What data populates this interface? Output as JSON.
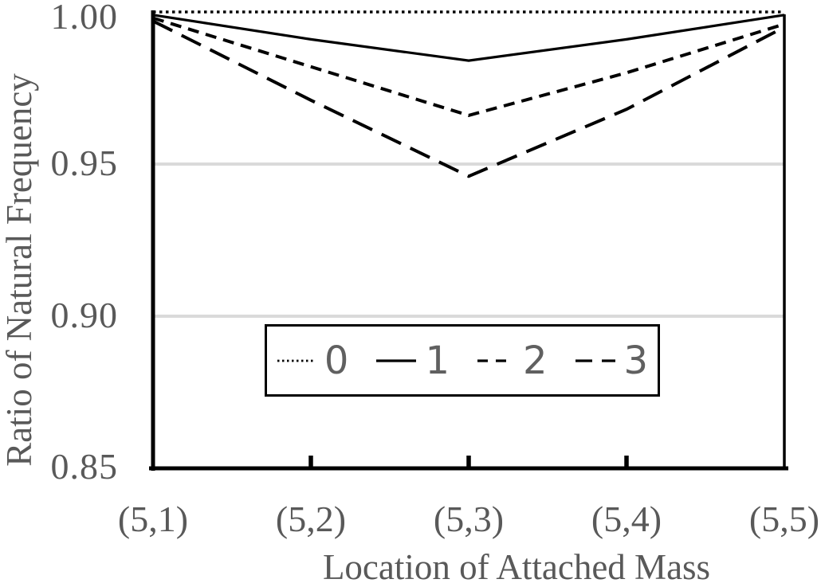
{
  "chart_data": {
    "type": "line",
    "xlabel": "Location of Attached Mass",
    "ylabel": "Ratio of Natural Frequency",
    "categories": [
      "(5,1)",
      "(5,2)",
      "(5,3)",
      "(5,4)",
      "(5,5)"
    ],
    "series": [
      {
        "name": "0",
        "line_style": "dotted",
        "values": [
          1.0,
          1.0,
          1.0,
          1.0,
          1.0
        ]
      },
      {
        "name": "1",
        "line_style": "solid",
        "values": [
          0.999,
          0.991,
          0.984,
          0.991,
          0.999
        ]
      },
      {
        "name": "2",
        "line_style": "short-dash",
        "values": [
          0.998,
          0.982,
          0.966,
          0.98,
          0.996
        ]
      },
      {
        "name": "3",
        "line_style": "long-dash",
        "values": [
          0.997,
          0.971,
          0.946,
          0.968,
          0.995
        ]
      }
    ],
    "ylim": [
      0.85,
      1.0
    ],
    "y_ticks": [
      "1.00",
      "0.95",
      "0.90",
      "0.85"
    ],
    "y_tick_values": [
      1.0,
      0.95,
      0.9,
      0.85
    ],
    "gridline_values": [
      0.95,
      0.9
    ],
    "grid": "horizontal-only",
    "legend_position": "inside-bottom-center",
    "colors": {
      "series_line": "#000000",
      "axis_line": "#000000",
      "gridline": "#dadada",
      "label_text": "#595959",
      "background": "#ffffff"
    }
  }
}
